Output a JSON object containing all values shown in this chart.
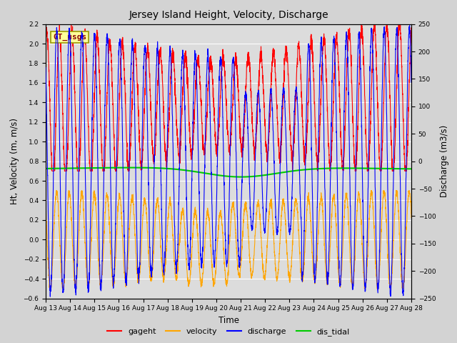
{
  "title": "Jersey Island Height, Velocity, Discharge",
  "xlabel": "Time",
  "ylabel_left": "Ht, Velocity (m, m/s)",
  "ylabel_right": "Discharge (m3/s)",
  "ylim_left": [
    -0.6,
    2.2
  ],
  "ylim_right": [
    -250,
    250
  ],
  "yticks_left": [
    -0.6,
    -0.4,
    -0.2,
    0.0,
    0.2,
    0.4,
    0.6,
    0.8,
    1.0,
    1.2,
    1.4,
    1.6,
    1.8,
    2.0,
    2.2
  ],
  "yticks_right": [
    -250,
    -200,
    -150,
    -100,
    -50,
    0,
    50,
    100,
    150,
    200,
    250
  ],
  "x_tick_days": [
    13,
    14,
    15,
    16,
    17,
    18,
    19,
    20,
    21,
    22,
    23,
    24,
    25,
    26,
    27,
    28
  ],
  "colors": {
    "gageht": "#ff0000",
    "velocity": "#ffa500",
    "discharge": "#0000ff",
    "dis_tidal": "#00cc00",
    "fig_bg": "#d3d3d3",
    "plot_bg": "#dcdcdc",
    "gt_usgs_bg": "#ffff99",
    "gt_usgs_border": "#999900",
    "gt_usgs_text": "#8b0000"
  },
  "gt_usgs_label": "GT_usgs"
}
